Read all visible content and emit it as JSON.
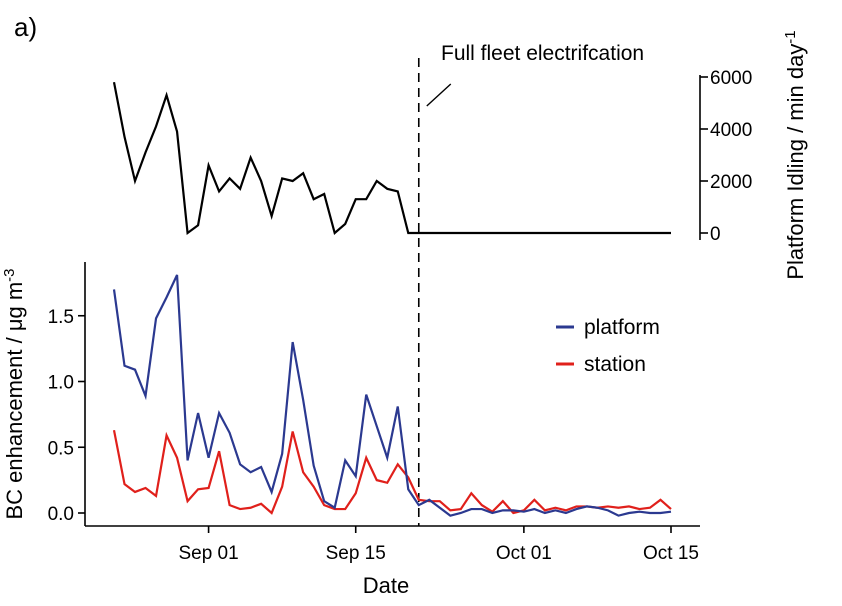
{
  "panel_label": "a)",
  "annotation": "Full fleet electrifcation",
  "chart_data": [
    {
      "id": "idling",
      "type": "line",
      "title": "",
      "xlabel": "",
      "ylabel": "Platform Idling / min day",
      "ylabel_sup": "-1",
      "y_axis_side": "right",
      "ylim": [
        0,
        6000
      ],
      "yticks": [
        0,
        2000,
        4000,
        6000
      ],
      "ytick_labels": [
        "0",
        "2000",
        "4000",
        "6000"
      ],
      "xlim": [
        "2023-08-22",
        "2023-10-15"
      ],
      "grid": false,
      "series": [
        {
          "color": "#000000",
          "x": [
            "08-23",
            "08-24",
            "08-25",
            "08-26",
            "08-27",
            "08-28",
            "08-29",
            "08-30",
            "08-31",
            "09-01",
            "09-02",
            "09-03",
            "09-04",
            "09-05",
            "09-06",
            "09-07",
            "09-08",
            "09-09",
            "09-10",
            "09-11",
            "09-12",
            "09-13",
            "09-14",
            "09-15",
            "09-16",
            "09-17",
            "09-18",
            "09-19",
            "09-20",
            "09-21",
            "10-15"
          ],
          "values": [
            5800,
            3700,
            2000,
            3100,
            4100,
            5300,
            3900,
            0,
            300,
            2600,
            1600,
            2100,
            1700,
            2900,
            2000,
            650,
            2100,
            2000,
            2300,
            1300,
            1500,
            0,
            350,
            1300,
            1300,
            2000,
            1700,
            1600,
            0,
            0,
            0
          ]
        }
      ]
    },
    {
      "id": "bc",
      "type": "line",
      "title": "",
      "xlabel": "Date",
      "ylabel": "BC enhancement / μg m",
      "ylabel_sup": "-3",
      "ylim": [
        -0.05,
        1.9
      ],
      "yticks": [
        0.0,
        0.5,
        1.0,
        1.5
      ],
      "ytick_labels": [
        "0.0",
        "0.5",
        "1.0",
        "1.5"
      ],
      "xlim": [
        "2023-08-22",
        "2023-10-15"
      ],
      "xticks": [
        "2023-09-01",
        "2023-09-15",
        "2023-10-01",
        "2023-10-15"
      ],
      "xtick_labels": [
        "Sep 01",
        "Sep 15",
        "Oct 01",
        "Oct 15"
      ],
      "vline": "2023-09-21",
      "legend_position": "right",
      "grid": false,
      "series": [
        {
          "name": "platform",
          "color": "#2b3990",
          "x": [
            "08-23",
            "08-24",
            "08-25",
            "08-26",
            "08-27",
            "08-28",
            "08-29",
            "08-30",
            "08-31",
            "09-01",
            "09-02",
            "09-03",
            "09-04",
            "09-05",
            "09-06",
            "09-07",
            "09-08",
            "09-09",
            "09-10",
            "09-11",
            "09-12",
            "09-13",
            "09-14",
            "09-15",
            "09-16",
            "09-17",
            "09-18",
            "09-19",
            "09-20",
            "09-21",
            "09-22",
            "09-23",
            "09-24",
            "09-25",
            "09-26",
            "09-27",
            "09-28",
            "09-29",
            "09-30",
            "10-01",
            "10-02",
            "10-03",
            "10-04",
            "10-05",
            "10-06",
            "10-07",
            "10-08",
            "10-09",
            "10-10",
            "10-11",
            "10-12",
            "10-13",
            "10-14",
            "10-15"
          ],
          "values": [
            1.7,
            1.12,
            1.09,
            0.89,
            1.48,
            1.64,
            1.81,
            0.4,
            0.76,
            0.42,
            0.76,
            0.61,
            0.37,
            0.31,
            0.35,
            0.16,
            0.45,
            1.3,
            0.86,
            0.36,
            0.09,
            0.04,
            0.4,
            0.28,
            0.9,
            0.66,
            0.42,
            0.81,
            0.18,
            0.06,
            0.1,
            0.04,
            -0.02,
            0.0,
            0.03,
            0.03,
            0.0,
            0.02,
            0.02,
            0.01,
            0.03,
            0.0,
            0.02,
            0.0,
            0.03,
            0.05,
            0.04,
            0.02,
            -0.02,
            0.0,
            0.01,
            0.0,
            0.0,
            0.01
          ]
        },
        {
          "name": "station",
          "color": "#e0201b",
          "x": [
            "08-23",
            "08-24",
            "08-25",
            "08-26",
            "08-27",
            "08-28",
            "08-29",
            "08-30",
            "08-31",
            "09-01",
            "09-02",
            "09-03",
            "09-04",
            "09-05",
            "09-06",
            "09-07",
            "09-08",
            "09-09",
            "09-10",
            "09-11",
            "09-12",
            "09-13",
            "09-14",
            "09-15",
            "09-16",
            "09-17",
            "09-18",
            "09-19",
            "09-20",
            "09-21",
            "09-22",
            "09-23",
            "09-24",
            "09-25",
            "09-26",
            "09-27",
            "09-28",
            "09-29",
            "09-30",
            "10-01",
            "10-02",
            "10-03",
            "10-04",
            "10-05",
            "10-06",
            "10-07",
            "10-08",
            "10-09",
            "10-10",
            "10-11",
            "10-12",
            "10-13",
            "10-14",
            "10-15"
          ],
          "values": [
            0.63,
            0.22,
            0.16,
            0.19,
            0.13,
            0.59,
            0.42,
            0.09,
            0.18,
            0.19,
            0.47,
            0.06,
            0.03,
            0.04,
            0.07,
            0.0,
            0.2,
            0.62,
            0.31,
            0.2,
            0.06,
            0.03,
            0.03,
            0.15,
            0.42,
            0.25,
            0.23,
            0.37,
            0.27,
            0.1,
            0.09,
            0.09,
            0.02,
            0.03,
            0.15,
            0.06,
            0.01,
            0.09,
            0.0,
            0.02,
            0.1,
            0.02,
            0.04,
            0.02,
            0.05,
            0.05,
            0.04,
            0.05,
            0.04,
            0.05,
            0.03,
            0.04,
            0.1,
            0.03
          ]
        }
      ]
    }
  ]
}
